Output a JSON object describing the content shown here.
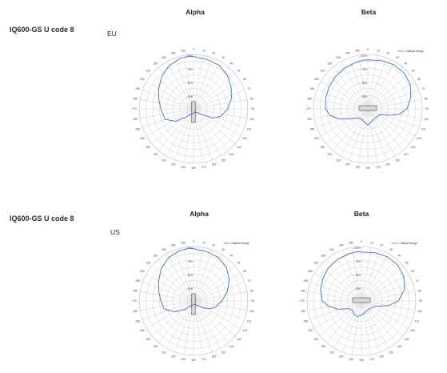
{
  "rows": [
    {
      "label": "IQ600-GS U code 8",
      "region": "EU"
    },
    {
      "label": "IQ600-GS U code 8",
      "region": "US"
    }
  ],
  "legend_label": "Fallback Range",
  "colors": {
    "trace": "#4a6fc4",
    "grid": "#b9b9b9",
    "axis": "#555555",
    "device_fill": "#d9d9d9"
  },
  "chart_data": [
    {
      "type": "polar-line",
      "title": "Alpha",
      "region": "EU",
      "theta_ticks": [
        "0",
        "10",
        "20",
        "30",
        "40",
        "50",
        "60",
        "70",
        "80",
        "90",
        "100",
        "110",
        "120",
        "130",
        "140",
        "150",
        "160",
        "170",
        "180",
        "190",
        "200",
        "210",
        "220",
        "230",
        "240",
        "250",
        "260",
        "270",
        "280",
        "290",
        "300",
        "310",
        "320",
        "330",
        "340",
        "350"
      ],
      "r_ticks": [
        "100%",
        "75%",
        "50%",
        "25%"
      ],
      "r_max": 100,
      "series": [
        {
          "name": "Fallback Range",
          "theta": [
            0,
            15,
            30,
            45,
            60,
            75,
            90,
            105,
            115,
            125,
            135,
            145,
            155,
            160,
            175,
            180,
            190,
            200,
            210,
            222,
            235,
            250,
            270,
            285,
            300,
            315,
            330,
            345,
            355
          ],
          "r": [
            96,
            94,
            93,
            88,
            80,
            72,
            63,
            52,
            40,
            18,
            10,
            8,
            6,
            6,
            6,
            7,
            10,
            10,
            12,
            20,
            40,
            56,
            60,
            66,
            74,
            83,
            91,
            96,
            97
          ]
        }
      ]
    },
    {
      "type": "polar-line",
      "title": "Beta",
      "region": "EU",
      "theta_ticks": [
        "0",
        "10",
        "20",
        "30",
        "40",
        "50",
        "60",
        "70",
        "80",
        "90",
        "100",
        "110",
        "120",
        "130",
        "140",
        "150",
        "160",
        "170",
        "180",
        "190",
        "200",
        "210",
        "220",
        "230",
        "240",
        "250",
        "260",
        "270",
        "280",
        "290",
        "300",
        "310",
        "320",
        "330",
        "340",
        "350"
      ],
      "r_ticks": [
        "100%",
        "75%",
        "50%",
        "25%"
      ],
      "r_max": 100,
      "series": [
        {
          "name": "Fallback Range",
          "theta": [
            0,
            15,
            30,
            45,
            60,
            75,
            90,
            100,
            105,
            115,
            130,
            150,
            170,
            180,
            190,
            210,
            225,
            240,
            250,
            260,
            270,
            285,
            300,
            315,
            330,
            345,
            355
          ],
          "r": [
            90,
            92,
            94,
            94,
            90,
            82,
            72,
            58,
            45,
            25,
            22,
            22,
            26,
            30,
            26,
            22,
            24,
            36,
            55,
            70,
            78,
            80,
            82,
            84,
            86,
            88,
            90
          ]
        }
      ]
    },
    {
      "type": "polar-line",
      "title": "Alpha",
      "region": "US",
      "theta_ticks": [
        "0",
        "10",
        "20",
        "30",
        "40",
        "50",
        "60",
        "70",
        "80",
        "90",
        "100",
        "110",
        "120",
        "130",
        "140",
        "150",
        "160",
        "170",
        "180",
        "190",
        "200",
        "210",
        "220",
        "230",
        "240",
        "250",
        "260",
        "270",
        "280",
        "290",
        "300",
        "310",
        "320",
        "330",
        "340",
        "350"
      ],
      "r_ticks": [
        "100%",
        "75%",
        "50%",
        "25%"
      ],
      "r_max": 100,
      "series": [
        {
          "name": "Fallback Range",
          "theta": [
            0,
            15,
            30,
            45,
            60,
            75,
            90,
            105,
            115,
            125,
            140,
            155,
            175,
            190,
            210,
            225,
            240,
            255,
            270,
            285,
            300,
            315,
            330,
            345,
            355
          ],
          "r": [
            96,
            94,
            92,
            86,
            76,
            64,
            52,
            42,
            34,
            22,
            10,
            8,
            6,
            8,
            10,
            22,
            40,
            56,
            60,
            66,
            74,
            84,
            92,
            96,
            97
          ]
        }
      ]
    },
    {
      "type": "polar-line",
      "title": "Beta",
      "region": "US",
      "theta_ticks": [
        "0",
        "10",
        "20",
        "30",
        "40",
        "50",
        "60",
        "70",
        "80",
        "90",
        "100",
        "110",
        "120",
        "130",
        "140",
        "150",
        "160",
        "170",
        "180",
        "190",
        "200",
        "210",
        "220",
        "230",
        "240",
        "250",
        "260",
        "270",
        "280",
        "290",
        "300",
        "310",
        "320",
        "330",
        "340",
        "350"
      ],
      "r_ticks": [
        "100%",
        "75%",
        "50%",
        "25%"
      ],
      "r_max": 100,
      "series": [
        {
          "name": "Fallback Range",
          "theta": [
            0,
            15,
            30,
            45,
            60,
            75,
            90,
            100,
            110,
            125,
            145,
            165,
            180,
            195,
            210,
            225,
            240,
            250,
            260,
            270,
            285,
            300,
            315,
            330,
            345,
            355
          ],
          "r": [
            90,
            92,
            94,
            94,
            90,
            82,
            68,
            50,
            28,
            22,
            20,
            22,
            26,
            30,
            28,
            24,
            28,
            45,
            60,
            72,
            78,
            82,
            86,
            88,
            90,
            91
          ]
        }
      ]
    }
  ]
}
